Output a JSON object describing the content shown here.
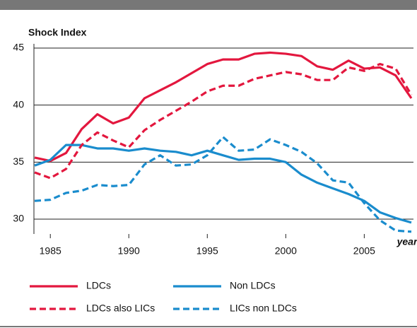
{
  "chart_data": {
    "type": "line",
    "y_label": "Shock Index",
    "x_label": "year",
    "x": [
      1984,
      1985,
      1986,
      1987,
      1988,
      1989,
      1990,
      1991,
      1992,
      1993,
      1994,
      1995,
      1996,
      1997,
      1998,
      1999,
      2000,
      2001,
      2002,
      2003,
      2004,
      2005,
      2006,
      2007,
      2008
    ],
    "xlim": [
      1984,
      2008
    ],
    "xticks": [
      1985,
      1990,
      1995,
      2000,
      2005
    ],
    "ylim": [
      28.7,
      45
    ],
    "yticks": [
      30,
      35,
      40,
      45
    ],
    "grid": true,
    "series": [
      {
        "name": "LDCs",
        "color": "#e3173e",
        "style": "solid",
        "values": [
          35.4,
          35.1,
          35.8,
          37.9,
          39.2,
          38.4,
          38.9,
          40.6,
          41.3,
          42.0,
          42.8,
          43.6,
          44.0,
          44.0,
          44.5,
          44.6,
          44.5,
          44.3,
          43.4,
          43.1,
          43.9,
          43.2,
          43.3,
          42.6,
          40.6
        ]
      },
      {
        "name": "Non LDCs",
        "color": "#1a8ccd",
        "style": "solid",
        "values": [
          34.7,
          35.2,
          36.5,
          36.5,
          36.2,
          36.2,
          36.0,
          36.2,
          36.0,
          35.9,
          35.6,
          36.0,
          35.6,
          35.2,
          35.3,
          35.3,
          35.0,
          33.9,
          33.2,
          32.7,
          32.2,
          31.6,
          30.6,
          30.1,
          29.7
        ]
      },
      {
        "name": "LDCs also LICs",
        "color": "#e3173e",
        "style": "dashed",
        "values": [
          34.1,
          33.6,
          34.4,
          36.5,
          37.6,
          36.9,
          36.3,
          37.8,
          38.7,
          39.5,
          40.3,
          41.2,
          41.7,
          41.7,
          42.3,
          42.6,
          42.9,
          42.7,
          42.2,
          42.2,
          43.3,
          43.0,
          43.6,
          43.2,
          40.9
        ]
      },
      {
        "name": "LICs non LDCs",
        "color": "#1a8ccd",
        "style": "dashed",
        "values": [
          31.6,
          31.7,
          32.3,
          32.5,
          33.0,
          32.9,
          33.0,
          34.8,
          35.6,
          34.7,
          34.8,
          35.6,
          37.2,
          36.0,
          36.1,
          37.0,
          36.5,
          35.9,
          34.9,
          33.4,
          33.2,
          31.4,
          29.9,
          29.0,
          28.9
        ]
      }
    ]
  }
}
